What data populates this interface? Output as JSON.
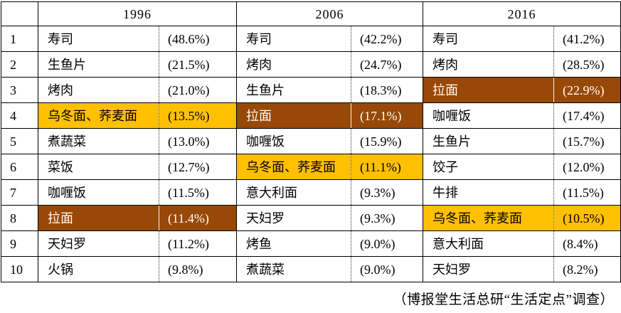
{
  "colors": {
    "highlight_orange": "#FFC000",
    "highlight_brown": "#984807",
    "border": "#000000",
    "background": "#FFFFFF"
  },
  "source_note": "（博报堂生活总研“生活定点”调查）",
  "chart_data": {
    "type": "table",
    "title": "",
    "years": [
      "1996",
      "2006",
      "2016"
    ],
    "columns_per_year": [
      "name",
      "percentage"
    ],
    "highlight_meaning": {
      "orange": "乌冬面、荞麦面",
      "brown": "拉面"
    },
    "rows": [
      {
        "rank": "1",
        "entries": [
          {
            "name": "寿司",
            "pct": "(48.6%)",
            "highlight": "none",
            "value": 48.6
          },
          {
            "name": "寿司",
            "pct": "(42.2%)",
            "highlight": "none",
            "value": 42.2
          },
          {
            "name": "寿司",
            "pct": "(41.2%)",
            "highlight": "none",
            "value": 41.2
          }
        ]
      },
      {
        "rank": "2",
        "entries": [
          {
            "name": "生鱼片",
            "pct": "(21.5%)",
            "highlight": "none",
            "value": 21.5
          },
          {
            "name": "烤肉",
            "pct": "(24.7%)",
            "highlight": "none",
            "value": 24.7
          },
          {
            "name": "烤肉",
            "pct": "(28.5%)",
            "highlight": "none",
            "value": 28.5
          }
        ]
      },
      {
        "rank": "3",
        "entries": [
          {
            "name": "烤肉",
            "pct": "(21.0%)",
            "highlight": "none",
            "value": 21.0
          },
          {
            "name": "生鱼片",
            "pct": "(18.3%)",
            "highlight": "none",
            "value": 18.3
          },
          {
            "name": "拉面",
            "pct": "(22.9%)",
            "highlight": "brown",
            "value": 22.9
          }
        ]
      },
      {
        "rank": "4",
        "entries": [
          {
            "name": "乌冬面、荞麦面",
            "pct": "(13.5%)",
            "highlight": "orange",
            "value": 13.5
          },
          {
            "name": "拉面",
            "pct": "(17.1%)",
            "highlight": "brown",
            "value": 17.1
          },
          {
            "name": "咖喱饭",
            "pct": "(17.4%)",
            "highlight": "none",
            "value": 17.4
          }
        ]
      },
      {
        "rank": "5",
        "entries": [
          {
            "name": "煮蔬菜",
            "pct": "(13.0%)",
            "highlight": "none",
            "value": 13.0
          },
          {
            "name": "咖喱饭",
            "pct": "(15.9%)",
            "highlight": "none",
            "value": 15.9
          },
          {
            "name": "生鱼片",
            "pct": "(15.7%)",
            "highlight": "none",
            "value": 15.7
          }
        ]
      },
      {
        "rank": "6",
        "entries": [
          {
            "name": "菜饭",
            "pct": "(12.7%)",
            "highlight": "none",
            "value": 12.7
          },
          {
            "name": "乌冬面、荞麦面",
            "pct": "(11.1%)",
            "highlight": "orange",
            "value": 11.1
          },
          {
            "name": "饺子",
            "pct": "(12.0%)",
            "highlight": "none",
            "value": 12.0
          }
        ]
      },
      {
        "rank": "7",
        "entries": [
          {
            "name": "咖喱饭",
            "pct": "(11.5%)",
            "highlight": "none",
            "value": 11.5
          },
          {
            "name": "意大利面",
            "pct": "(9.3%)",
            "highlight": "none",
            "value": 9.3
          },
          {
            "name": "牛排",
            "pct": "(11.5%)",
            "highlight": "none",
            "value": 11.5
          }
        ]
      },
      {
        "rank": "8",
        "entries": [
          {
            "name": "拉面",
            "pct": "(11.4%)",
            "highlight": "brown",
            "value": 11.4
          },
          {
            "name": "天妇罗",
            "pct": "(9.3%)",
            "highlight": "none",
            "value": 9.3
          },
          {
            "name": "乌冬面、荞麦面",
            "pct": "(10.5%)",
            "highlight": "orange",
            "value": 10.5
          }
        ]
      },
      {
        "rank": "9",
        "entries": [
          {
            "name": "天妇罗",
            "pct": "(11.2%)",
            "highlight": "none",
            "value": 11.2
          },
          {
            "name": "烤鱼",
            "pct": "(9.0%)",
            "highlight": "none",
            "value": 9.0
          },
          {
            "name": "意大利面",
            "pct": "(8.4%)",
            "highlight": "none",
            "value": 8.4
          }
        ]
      },
      {
        "rank": "10",
        "entries": [
          {
            "name": "火锅",
            "pct": "(9.8%)",
            "highlight": "none",
            "value": 9.8
          },
          {
            "name": "煮蔬菜",
            "pct": "(9.0%)",
            "highlight": "none",
            "value": 9.0
          },
          {
            "name": "天妇罗",
            "pct": "(8.2%)",
            "highlight": "none",
            "value": 8.2
          }
        ]
      }
    ]
  }
}
